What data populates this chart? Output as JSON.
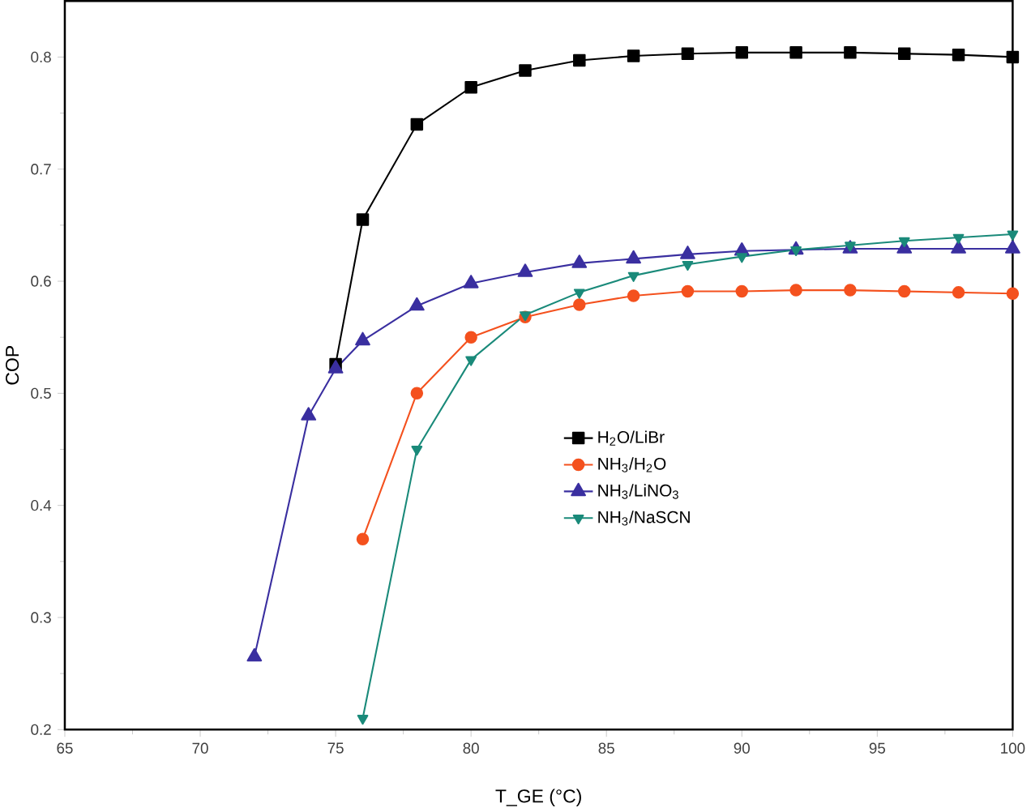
{
  "chart_data": {
    "type": "line",
    "xlabel": "T_GE (°C)",
    "ylabel": "COP",
    "xlim": [
      65,
      100
    ],
    "ylim": [
      0.2,
      0.85
    ],
    "xticks": [
      65,
      70,
      75,
      80,
      85,
      90,
      95,
      100
    ],
    "yticks": [
      0.2,
      0.3,
      0.4,
      0.5,
      0.6,
      0.7,
      0.8
    ],
    "legend": "right",
    "grid": false,
    "series": [
      {
        "name": "H$_{2}$O/LiBr",
        "color": "#000000",
        "marker": "square",
        "x": [
          75,
          76,
          78,
          80,
          82,
          84,
          86,
          88,
          90,
          92,
          94,
          96,
          98,
          100
        ],
        "values": [
          0.526,
          0.655,
          0.74,
          0.773,
          0.788,
          0.797,
          0.801,
          0.803,
          0.804,
          0.804,
          0.804,
          0.803,
          0.802,
          0.8
        ]
      },
      {
        "name": "NH$_{3}$/H$_{2}$O",
        "color": "#f4511e",
        "marker": "circle",
        "x": [
          76,
          78,
          80,
          82,
          84,
          86,
          88,
          90,
          92,
          94,
          96,
          98,
          100
        ],
        "values": [
          0.37,
          0.5,
          0.55,
          0.568,
          0.579,
          0.587,
          0.591,
          0.591,
          0.592,
          0.592,
          0.591,
          0.59,
          0.589
        ]
      },
      {
        "name": "NH$_{3}$/LiNO$_{3}$",
        "color": "#3a2fa0",
        "marker": "triangle",
        "x": [
          72,
          74,
          75,
          76,
          78,
          80,
          82,
          84,
          86,
          88,
          90,
          92,
          94,
          96,
          98,
          100
        ],
        "values": [
          0.265,
          0.48,
          0.522,
          0.547,
          0.578,
          0.598,
          0.608,
          0.616,
          0.62,
          0.624,
          0.627,
          0.628,
          0.629,
          0.629,
          0.629,
          0.629
        ]
      },
      {
        "name": "NH$_{3}$/NaSCN",
        "color": "#1a8a7a",
        "marker": "triangle-down",
        "x": [
          76,
          78,
          80,
          82,
          84,
          86,
          88,
          90,
          92,
          94,
          96,
          98,
          100
        ],
        "values": [
          0.21,
          0.45,
          0.53,
          0.57,
          0.59,
          0.605,
          0.615,
          0.622,
          0.628,
          0.632,
          0.636,
          0.639,
          0.642
        ]
      }
    ]
  }
}
